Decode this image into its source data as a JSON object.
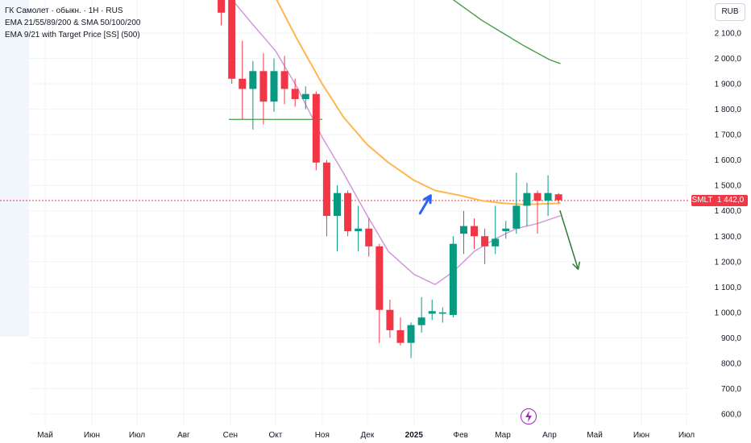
{
  "legend": {
    "line1": "ГК Самолет · обыкн. · 1Н · RUS",
    "line2": "EMA 21/55/89/200 & SMA 50/100/200",
    "line3": "EMA 9/21 with Target Price [SS] (500)"
  },
  "currency": "RUB",
  "price_tag": {
    "symbol": "SMLT",
    "value": "1 442,0"
  },
  "chart_data": {
    "type": "candlestick",
    "y_ticks": [
      "2 100,0",
      "2 000,0",
      "1 900,0",
      "1 800,0",
      "1 700,0",
      "1 600,0",
      "1 500,0",
      "1 400,0",
      "1 300,0",
      "1 200,0",
      "1 100,0",
      "1 000,0",
      "900,0",
      "800,0",
      "700,0",
      "600,0"
    ],
    "y_tick_values": [
      2100,
      2000,
      1900,
      1800,
      1700,
      1600,
      1500,
      1400,
      1300,
      1200,
      1100,
      1000,
      900,
      800,
      700,
      600
    ],
    "ylim": [
      565,
      2225
    ],
    "x_labels": [
      "Май",
      "Июн",
      "Июл",
      "Авг",
      "Сен",
      "Окт",
      "Ноя",
      "Дек",
      "2025",
      "Фев",
      "Мар",
      "Апр",
      "Май",
      "Июн",
      "Июл"
    ],
    "x_label_dates": [
      "2024-05-01",
      "2024-06-01",
      "2024-07-01",
      "2024-08-01",
      "2024-09-01",
      "2024-10-01",
      "2024-11-01",
      "2024-12-01",
      "2025-01-01",
      "2025-02-01",
      "2025-03-01",
      "2025-04-01",
      "2025-05-01",
      "2025-06-01",
      "2025-07-01"
    ],
    "last_price": 1442.0,
    "candles": [
      {
        "date": "2024-08-26",
        "open": 2240,
        "high": 2240,
        "low": 2130,
        "close": 2180
      },
      {
        "date": "2024-09-02",
        "open": 2240,
        "high": 2240,
        "low": 1900,
        "close": 1920
      },
      {
        "date": "2024-09-09",
        "open": 1920,
        "high": 2070,
        "low": 1760,
        "close": 1880
      },
      {
        "date": "2024-09-16",
        "open": 1880,
        "high": 1990,
        "low": 1720,
        "close": 1950
      },
      {
        "date": "2024-09-23",
        "open": 1950,
        "high": 2020,
        "low": 1740,
        "close": 1830
      },
      {
        "date": "2024-09-30",
        "open": 1830,
        "high": 2000,
        "low": 1790,
        "close": 1950
      },
      {
        "date": "2024-10-07",
        "open": 1950,
        "high": 2010,
        "low": 1820,
        "close": 1880
      },
      {
        "date": "2024-10-14",
        "open": 1880,
        "high": 1920,
        "low": 1810,
        "close": 1840
      },
      {
        "date": "2024-10-21",
        "open": 1840,
        "high": 1890,
        "low": 1800,
        "close": 1860
      },
      {
        "date": "2024-10-28",
        "open": 1860,
        "high": 1870,
        "low": 1560,
        "close": 1590
      },
      {
        "date": "2024-11-04",
        "open": 1590,
        "high": 1600,
        "low": 1300,
        "close": 1380
      },
      {
        "date": "2024-11-11",
        "open": 1380,
        "high": 1500,
        "low": 1240,
        "close": 1470
      },
      {
        "date": "2024-11-18",
        "open": 1470,
        "high": 1480,
        "low": 1300,
        "close": 1320
      },
      {
        "date": "2024-11-25",
        "open": 1320,
        "high": 1420,
        "low": 1240,
        "close": 1330
      },
      {
        "date": "2024-12-02",
        "open": 1330,
        "high": 1370,
        "low": 1220,
        "close": 1260
      },
      {
        "date": "2024-12-09",
        "open": 1260,
        "high": 1270,
        "low": 880,
        "close": 1010
      },
      {
        "date": "2024-12-16",
        "open": 1010,
        "high": 1050,
        "low": 900,
        "close": 930
      },
      {
        "date": "2024-12-23",
        "open": 930,
        "high": 980,
        "low": 870,
        "close": 880
      },
      {
        "date": "2024-12-30",
        "open": 880,
        "high": 960,
        "low": 820,
        "close": 950
      },
      {
        "date": "2025-01-06",
        "open": 950,
        "high": 1060,
        "low": 920,
        "close": 980
      },
      {
        "date": "2025-01-13",
        "open": 995,
        "high": 1050,
        "low": 970,
        "close": 1005
      },
      {
        "date": "2025-01-20",
        "open": 995,
        "high": 1020,
        "low": 960,
        "close": 1000
      },
      {
        "date": "2025-01-27",
        "open": 990,
        "high": 1300,
        "low": 980,
        "close": 1270
      },
      {
        "date": "2025-02-03",
        "open": 1310,
        "high": 1400,
        "low": 1230,
        "close": 1340
      },
      {
        "date": "2025-02-10",
        "open": 1340,
        "high": 1370,
        "low": 1250,
        "close": 1300
      },
      {
        "date": "2025-02-17",
        "open": 1300,
        "high": 1330,
        "low": 1190,
        "close": 1260
      },
      {
        "date": "2025-02-24",
        "open": 1260,
        "high": 1420,
        "low": 1230,
        "close": 1290
      },
      {
        "date": "2025-03-03",
        "open": 1320,
        "high": 1360,
        "low": 1290,
        "close": 1330
      },
      {
        "date": "2025-03-10",
        "open": 1330,
        "high": 1550,
        "low": 1310,
        "close": 1420
      },
      {
        "date": "2025-03-17",
        "open": 1420,
        "high": 1510,
        "low": 1340,
        "close": 1470
      },
      {
        "date": "2025-03-24",
        "open": 1470,
        "high": 1480,
        "low": 1310,
        "close": 1440
      },
      {
        "date": "2025-03-31",
        "open": 1440,
        "high": 1540,
        "low": 1380,
        "close": 1470
      },
      {
        "date": "2025-04-07",
        "open": 1465,
        "high": 1470,
        "low": 1430,
        "close": 1442
      }
    ],
    "series": [
      {
        "color": "#ffb74d",
        "points": [
          [
            "2024-10-01",
            2240
          ],
          [
            "2024-10-15",
            2080
          ],
          [
            "2024-11-01",
            1900
          ],
          [
            "2024-11-15",
            1770
          ],
          [
            "2024-12-01",
            1660
          ],
          [
            "2024-12-15",
            1590
          ],
          [
            "2025-01-01",
            1520
          ],
          [
            "2025-01-15",
            1480
          ],
          [
            "2025-02-01",
            1460
          ],
          [
            "2025-02-15",
            1440
          ],
          [
            "2025-03-01",
            1430
          ],
          [
            "2025-03-15",
            1425
          ],
          [
            "2025-04-01",
            1428
          ],
          [
            "2025-04-08",
            1430
          ]
        ]
      },
      {
        "color": "#ce93d8",
        "points": [
          [
            "2024-09-01",
            2240
          ],
          [
            "2024-09-15",
            2140
          ],
          [
            "2024-10-01",
            2030
          ],
          [
            "2024-10-15",
            1890
          ],
          [
            "2024-11-01",
            1690
          ],
          [
            "2024-11-15",
            1550
          ],
          [
            "2024-12-01",
            1380
          ],
          [
            "2024-12-15",
            1240
          ],
          [
            "2025-01-01",
            1150
          ],
          [
            "2025-01-15",
            1110
          ],
          [
            "2025-01-27",
            1160
          ],
          [
            "2025-02-10",
            1240
          ],
          [
            "2025-02-24",
            1290
          ],
          [
            "2025-03-10",
            1330
          ],
          [
            "2025-03-24",
            1350
          ],
          [
            "2025-04-08",
            1380
          ]
        ]
      },
      {
        "color": "#43a047",
        "points": [
          [
            "2025-01-25",
            2240
          ],
          [
            "2025-02-15",
            2150
          ],
          [
            "2025-03-01",
            2100
          ],
          [
            "2025-03-15",
            2050
          ],
          [
            "2025-04-01",
            1995
          ],
          [
            "2025-04-08",
            1980
          ]
        ]
      }
    ],
    "annotations": [
      {
        "type": "hline",
        "color": "#43a047",
        "x1": "2024-08-31",
        "x2": "2024-11-01",
        "y": 1760
      },
      {
        "type": "arrow",
        "color": "#2962ff",
        "from": [
          "2025-01-05",
          1390
        ],
        "to": [
          "2025-01-12",
          1460
        ]
      },
      {
        "type": "arrow",
        "color": "#2e7d32",
        "from": [
          "2025-04-08",
          1400
        ],
        "to": [
          "2025-04-20",
          1170
        ]
      }
    ]
  }
}
